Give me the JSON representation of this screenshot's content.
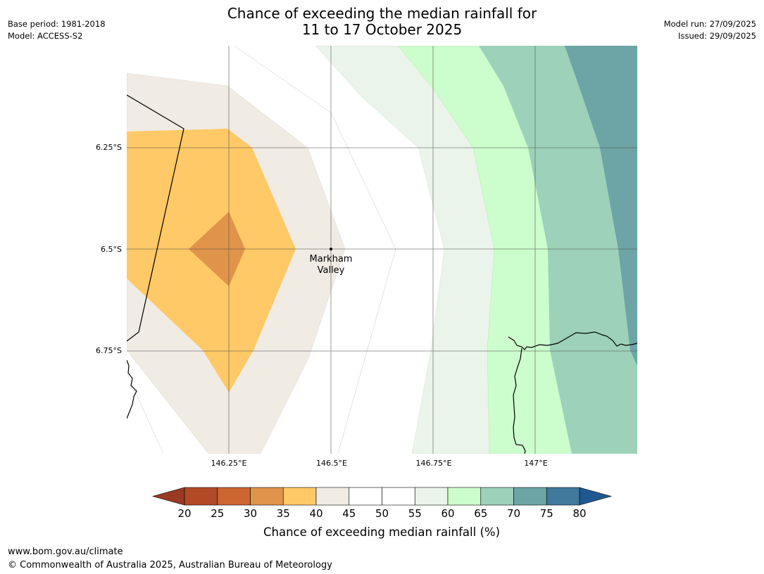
{
  "title": {
    "line1": "Chance of exceeding the median rainfall for",
    "line2": "11 to 17 October 2025"
  },
  "meta": {
    "base_period": "Base period: 1981-2018",
    "model": "Model: ACCESS-S2",
    "model_run": "Model run: 27/09/2025",
    "issued": "Issued: 29/09/2025"
  },
  "map": {
    "place_label_line1": "Markham",
    "place_label_line2": "Valley",
    "lon_ticks": [
      "146.25°E",
      "146.5°E",
      "146.75°E",
      "147°E"
    ],
    "lat_ticks": [
      "6.25°S",
      "6.5°S",
      "6.75°S"
    ]
  },
  "legend": {
    "title": "Chance of exceeding median rainfall (%)",
    "ticks": [
      "20",
      "25",
      "30",
      "35",
      "40",
      "45",
      "50",
      "55",
      "60",
      "65",
      "70",
      "75",
      "80"
    ],
    "colors": [
      "#b34a26",
      "#cc6631",
      "#e0944a",
      "#fec966",
      "#f0ebe3",
      "#ffffff",
      "#ffffff",
      "#eaf4ea",
      "#ccfdcc",
      "#9dd1b9",
      "#6da5a6",
      "#40799c"
    ],
    "under_color": "#9a3a22",
    "over_color": "#1f5890"
  },
  "footer": {
    "url": "www.bom.gov.au/climate",
    "copyright": "© Commonwealth of Australia 2025, Australian Bureau of Meteorology"
  }
}
